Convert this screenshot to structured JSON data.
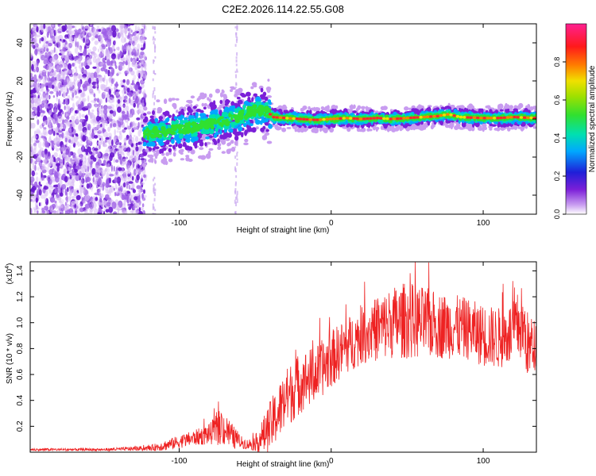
{
  "title": "C2E2.2026.114.22.55.G08",
  "chart_data": [
    {
      "type": "heatmap",
      "name": "spectrogram",
      "xlabel": "Height of straight line (km)",
      "ylabel": "Frequency (Hz)",
      "xlim": [
        -198,
        135
      ],
      "ylim": [
        -50,
        50
      ],
      "xticks": [
        -100,
        0,
        100
      ],
      "xtick_labels": [
        "-100",
        "0",
        "100"
      ],
      "yticks": [
        -40,
        -20,
        0,
        20,
        40
      ],
      "ytick_labels": [
        "-40",
        "-20",
        "0",
        "20",
        "40"
      ],
      "colorbar": {
        "label": "Normalized spectral amplitude",
        "range": [
          0,
          1
        ],
        "ticks": [
          0.0,
          0.2,
          0.4,
          0.6,
          0.8
        ],
        "tick_labels": [
          "0.0",
          "0.2",
          "0.4",
          "0.6",
          "0.8"
        ],
        "colors": [
          "#ffffff",
          "#c89cf0",
          "#7b1fd8",
          "#1f1fd8",
          "#00a8ff",
          "#00e0b0",
          "#30e030",
          "#a0e000",
          "#f0e000",
          "#ff8000",
          "#ff1a1a",
          "#ff2090"
        ]
      },
      "noise_region_x": [
        -198,
        -122
      ],
      "ridge_x": [
        -123,
        -115,
        -105,
        -95,
        -85,
        -75,
        -65,
        -55,
        -48,
        -42,
        -38,
        -30,
        -20,
        -10,
        0,
        10,
        20,
        30,
        40,
        50,
        60,
        70,
        77,
        85,
        100,
        110,
        120,
        135
      ],
      "ridge_frequency": [
        -8,
        -7,
        -6,
        -5,
        -4,
        -2,
        0,
        3,
        5,
        4,
        1,
        0.5,
        0,
        -0.5,
        0,
        0.5,
        0,
        0.5,
        0,
        0.5,
        1,
        1.5,
        2.5,
        1,
        0.5,
        0.5,
        1,
        0.5
      ]
    },
    {
      "type": "line",
      "name": "snr",
      "xlabel": "Height of straight line (km)",
      "ylabel": "SNR (10 * v/v)",
      "scale_label": "(x10",
      "scale_exponent": "4",
      "xlim": [
        -198,
        135
      ],
      "ylim": [
        0,
        1.47
      ],
      "xticks": [
        -100,
        0,
        100
      ],
      "xtick_labels": [
        "-100",
        "0",
        "100"
      ],
      "yticks": [
        0.2,
        0.4,
        0.6,
        0.8,
        1.0,
        1.2,
        1.4
      ],
      "ytick_labels": [
        "0.2",
        "0.4",
        "0.6",
        "0.8",
        "1.0",
        "1.2",
        "1.4"
      ],
      "line_color": "#ee2222",
      "envelope_x": [
        -198,
        -150,
        -120,
        -110,
        -100,
        -90,
        -80,
        -72,
        -65,
        -60,
        -55,
        -50,
        -45,
        -40,
        -35,
        -30,
        -25,
        -20,
        -10,
        0,
        10,
        20,
        30,
        40,
        50,
        60,
        70,
        80,
        90,
        100,
        110,
        120,
        125,
        130,
        135
      ],
      "envelope_mean": [
        0.02,
        0.02,
        0.03,
        0.05,
        0.08,
        0.11,
        0.14,
        0.2,
        0.12,
        0.08,
        0.06,
        0.07,
        0.12,
        0.2,
        0.3,
        0.4,
        0.48,
        0.54,
        0.6,
        0.72,
        0.82,
        0.9,
        0.95,
        1.0,
        1.02,
        1.0,
        0.98,
        0.97,
        0.95,
        0.9,
        0.88,
        0.92,
        1.0,
        0.8,
        0.85
      ],
      "envelope_amplitude": [
        0.01,
        0.01,
        0.02,
        0.04,
        0.05,
        0.06,
        0.08,
        0.15,
        0.1,
        0.05,
        0.04,
        0.06,
        0.14,
        0.2,
        0.22,
        0.24,
        0.24,
        0.24,
        0.22,
        0.22,
        0.22,
        0.22,
        0.25,
        0.28,
        0.3,
        0.28,
        0.26,
        0.25,
        0.24,
        0.24,
        0.24,
        0.25,
        0.3,
        0.25,
        0.2
      ]
    }
  ]
}
